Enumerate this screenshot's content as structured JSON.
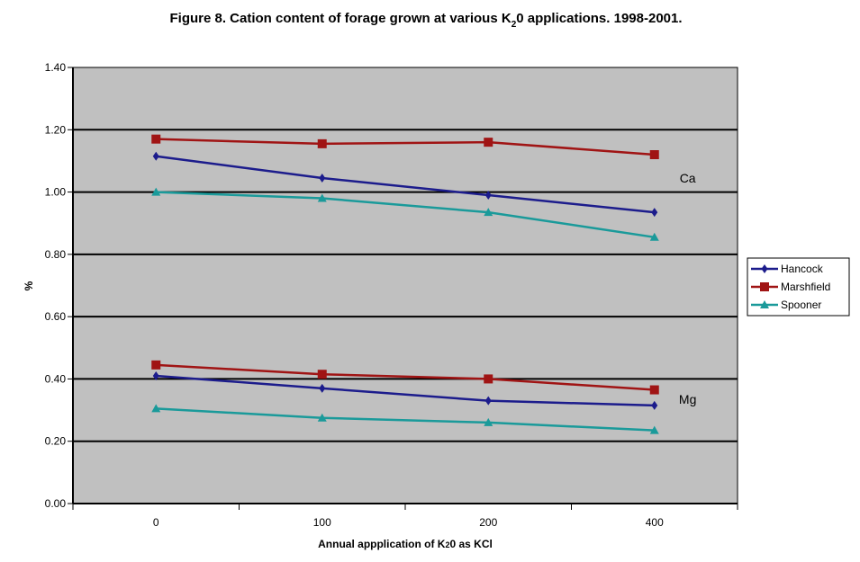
{
  "chart_data": {
    "type": "line",
    "title_parts": [
      "Figure 8. Cation content of forage grown at various K",
      "2",
      "0 applications. 1998-2001."
    ],
    "xlabel_parts": [
      "Annual appplication of K",
      "2",
      "0 as KCl"
    ],
    "ylabel": "%",
    "categories": [
      "0",
      "100",
      "200",
      "400"
    ],
    "ylim": [
      0,
      1.4
    ],
    "yticks": [
      "0.00",
      "0.20",
      "0.40",
      "0.60",
      "0.80",
      "1.00",
      "1.20",
      "1.40"
    ],
    "grid": true,
    "legend_position": "right",
    "annotations": [
      {
        "text": "Ca",
        "x": 3.2,
        "y": 1.03
      },
      {
        "text": "Mg",
        "x": 3.2,
        "y": 0.32
      }
    ],
    "series": [
      {
        "name": "Hancock",
        "group": "Ca",
        "color": "#1c1c8c",
        "marker": "diamond",
        "values": [
          1.115,
          1.045,
          0.99,
          0.935
        ]
      },
      {
        "name": "Marshfield",
        "group": "Ca",
        "color": "#a01414",
        "marker": "square",
        "values": [
          1.17,
          1.155,
          1.16,
          1.12
        ]
      },
      {
        "name": "Spooner",
        "group": "Ca",
        "color": "#1a9a9a",
        "marker": "triangle",
        "values": [
          1.0,
          0.98,
          0.935,
          0.855
        ]
      },
      {
        "name": "Hancock",
        "group": "Mg",
        "color": "#1c1c8c",
        "marker": "diamond",
        "values": [
          0.41,
          0.37,
          0.33,
          0.315
        ]
      },
      {
        "name": "Marshfield",
        "group": "Mg",
        "color": "#a01414",
        "marker": "square",
        "values": [
          0.445,
          0.415,
          0.4,
          0.365
        ]
      },
      {
        "name": "Spooner",
        "group": "Mg",
        "color": "#1a9a9a",
        "marker": "triangle",
        "values": [
          0.305,
          0.275,
          0.26,
          0.235
        ]
      }
    ],
    "legend": [
      {
        "name": "Hancock",
        "color": "#1c1c8c",
        "marker": "diamond"
      },
      {
        "name": "Marshfield",
        "color": "#a01414",
        "marker": "square"
      },
      {
        "name": "Spooner",
        "color": "#1a9a9a",
        "marker": "triangle"
      }
    ],
    "plot_background": "#c0c0c0"
  }
}
